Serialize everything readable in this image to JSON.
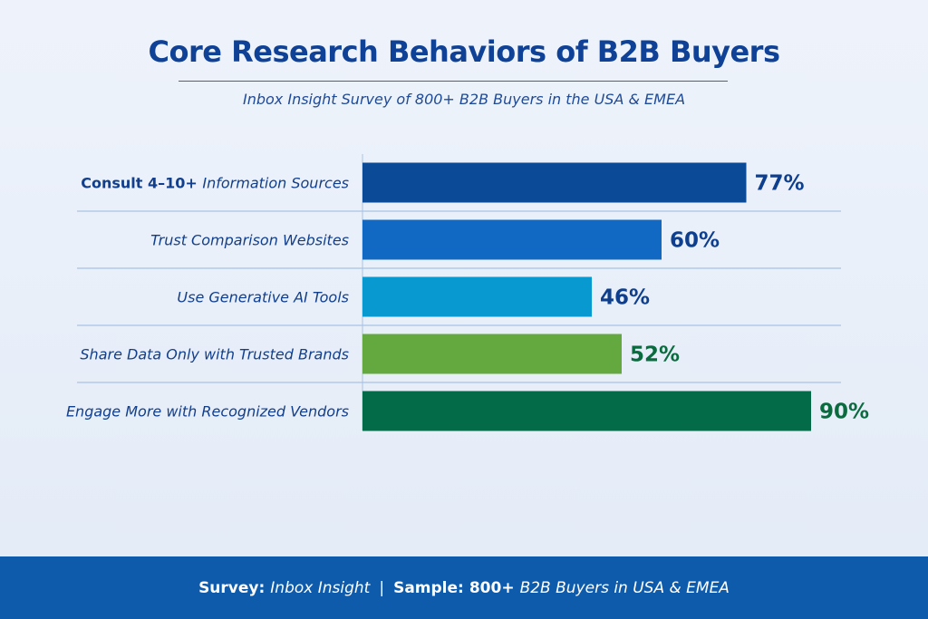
{
  "chart_data": {
    "type": "bar",
    "orientation": "horizontal",
    "title": "Core Research Behaviors of B2B Buyers",
    "subtitle": "Inbox Insight Survey of 800+ B2B Buyers in the USA & EMEA",
    "categories": [
      "Consult 4–10+ Information Sources",
      "Trust Comparison Websites",
      "Use Generative AI Tools",
      "Share Data Only with Trusted Brands",
      "Engage More with Recognized Vendors"
    ],
    "category_parts": [
      [
        {
          "t": "Consult ",
          "s": "b"
        },
        {
          "t": "4–10+ ",
          "s": "b"
        },
        {
          "t": "Information Sources",
          "s": "it"
        }
      ],
      [
        {
          "t": "Trust Comparison Websites",
          "s": "it"
        }
      ],
      [
        {
          "t": "Use Generative AI Tools",
          "s": "it"
        }
      ],
      [
        {
          "t": "Share Data Only with Trusted Brands",
          "s": "it"
        }
      ],
      [
        {
          "t": "Engage More with Recognized Vendors",
          "s": "it"
        }
      ]
    ],
    "values": [
      77,
      60,
      46,
      52,
      90
    ],
    "value_labels": [
      "77%",
      "60%",
      "46%",
      "52%",
      "90%"
    ],
    "bar_colors": [
      "#0a4a97",
      "#1169c4",
      "#0799cf",
      "#64a93f",
      "#046b48"
    ],
    "label_colors": [
      "#0e3f8e",
      "#0e3f8e",
      "#0e3f8e",
      "#0a6b3f",
      "#0a6b3f"
    ],
    "xlabel": "",
    "ylabel": "",
    "grid": "horizontal separators",
    "legend": "none"
  },
  "footer": {
    "survey_label": "Survey:",
    "survey_value": "Inbox Insight",
    "sep": "|",
    "sample_label": "Sample:",
    "sample_count": "800+",
    "sample_value": "B2B Buyers in USA & EMEA"
  }
}
